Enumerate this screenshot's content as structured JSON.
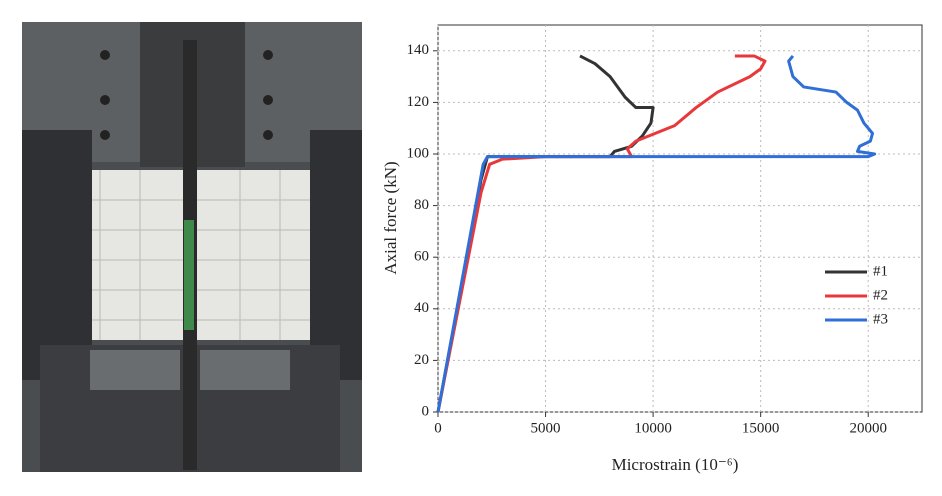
{
  "chart_data": {
    "type": "line",
    "xlabel": "Microstrain (10⁻⁶)",
    "ylabel": "Axial force  (kN)",
    "xlim": [
      0,
      22500
    ],
    "xticks": [
      0,
      5000,
      10000,
      15000,
      20000
    ],
    "ylim": [
      0,
      150
    ],
    "yticks": [
      0,
      20,
      40,
      60,
      80,
      100,
      120,
      140
    ],
    "grid": true,
    "legend": "right",
    "series": [
      {
        "name": "#1",
        "color": "#333333",
        "x": [
          0,
          2000,
          2300,
          8000,
          8200,
          9000,
          9500,
          9900,
          10000,
          9200,
          8700,
          8000,
          7300,
          6600
        ],
        "values": [
          0,
          90,
          99,
          99,
          101,
          103,
          107,
          112,
          118,
          118,
          122,
          130,
          135,
          138
        ]
      },
      {
        "name": "#2",
        "color": "#e8383b",
        "x": [
          0,
          2000,
          2400,
          3000,
          5000,
          9000,
          8800,
          9200,
          11000,
          12000,
          13000,
          14500,
          15000,
          15200,
          14700,
          13800
        ],
        "values": [
          0,
          85,
          96,
          98,
          99,
          99,
          102,
          105,
          111,
          118,
          124,
          130,
          133,
          136,
          138,
          138
        ]
      },
      {
        "name": "#3",
        "color": "#2f6fd6",
        "x": [
          0,
          2100,
          2300,
          20000,
          20300,
          19500,
          19600,
          20100,
          20200,
          19800,
          19500,
          19000,
          18500,
          17000,
          16500,
          16300,
          16500
        ],
        "values": [
          0,
          96,
          99,
          99,
          100,
          101,
          103,
          105,
          108,
          112,
          117,
          120,
          124,
          126,
          130,
          136,
          138
        ]
      }
    ]
  }
}
